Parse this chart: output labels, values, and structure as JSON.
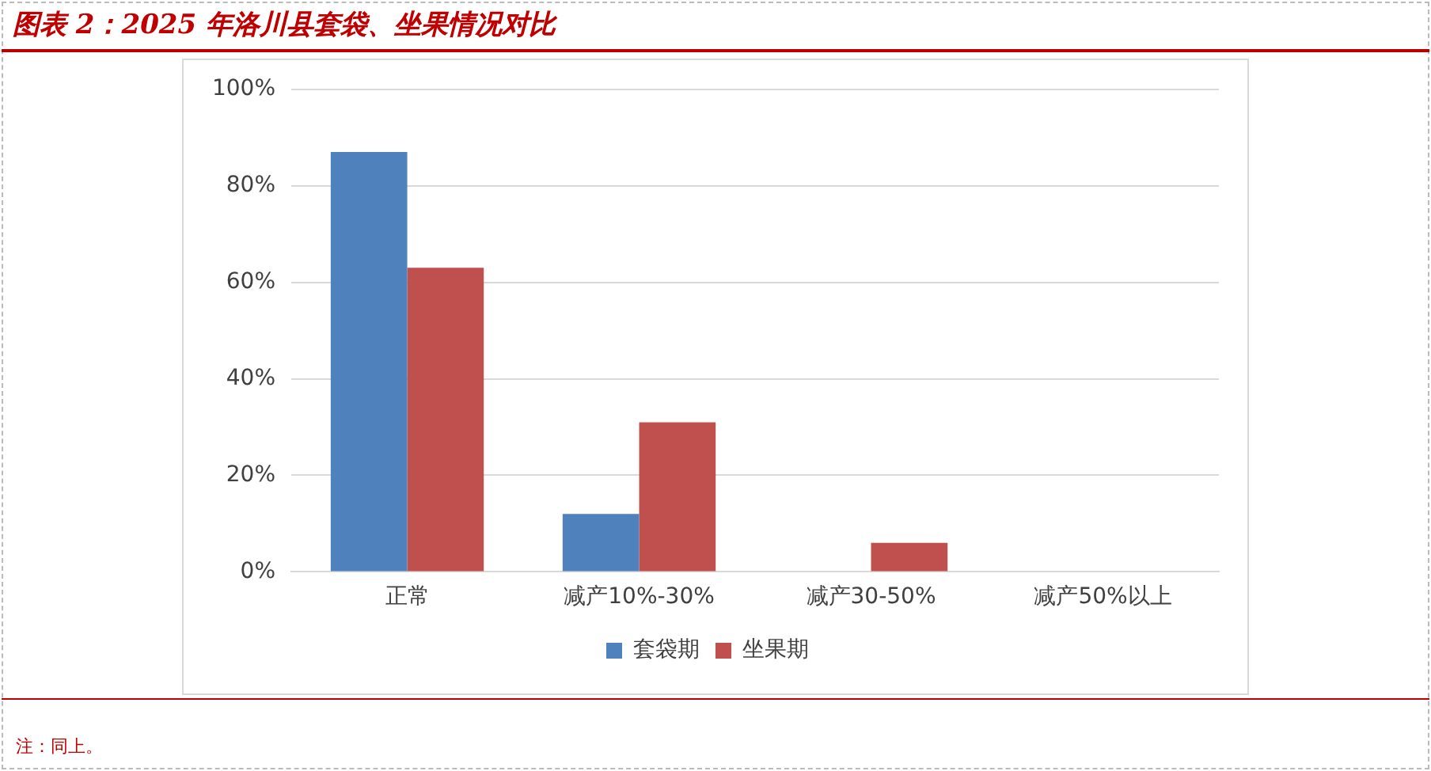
{
  "chart_data": {
    "type": "bar",
    "title": "图表 2：2025 年洛川县套袋、坐果情况对比",
    "categories": [
      "正常",
      "减产10%-30%",
      "减产30-50%",
      "减产50%以上"
    ],
    "series": [
      {
        "name": "套袋期",
        "color": "#4f81bd",
        "values": [
          87,
          12,
          0,
          0
        ]
      },
      {
        "name": "坐果期",
        "color": "#c0504d",
        "values": [
          63,
          31,
          6,
          0
        ]
      }
    ],
    "ylim": [
      0,
      100
    ],
    "yticks": [
      {
        "value": 0,
        "label": "0%"
      },
      {
        "value": 20,
        "label": "20%"
      },
      {
        "value": 40,
        "label": "40%"
      },
      {
        "value": 60,
        "label": "60%"
      },
      {
        "value": 80,
        "label": "80%"
      },
      {
        "value": 100,
        "label": "100%"
      }
    ],
    "grid": "y",
    "legend": "bottom",
    "annotations": [
      "注：同上。"
    ]
  }
}
